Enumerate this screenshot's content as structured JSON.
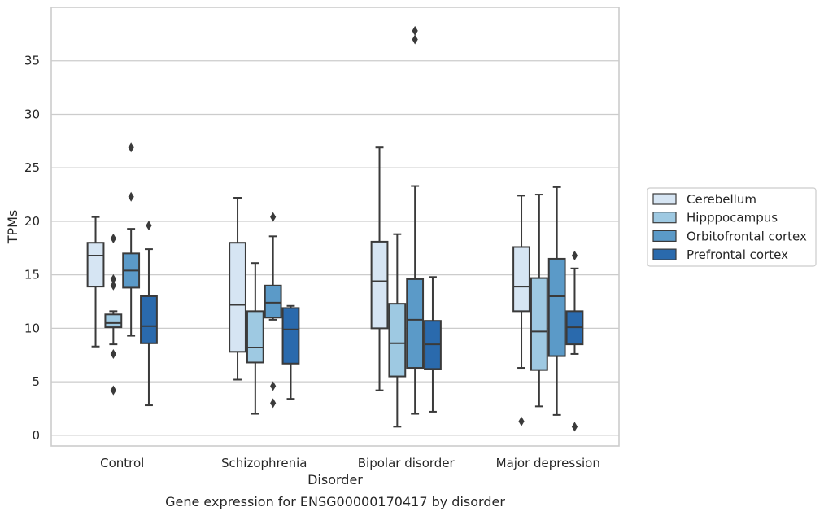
{
  "chart_data": {
    "type": "box",
    "title": "Gene expression for ENSG00000170417 by disorder",
    "xlabel": "Disorder",
    "ylabel": "TPMs",
    "ylim": [
      -1,
      40
    ],
    "yticks": [
      0,
      5,
      10,
      15,
      20,
      25,
      30,
      35
    ],
    "grid": "horizontal",
    "legend_position": "right",
    "categories": [
      "Control",
      "Schizophrenia",
      "Bipolar disorder",
      "Major depression"
    ],
    "series": [
      {
        "name": "Cerebellum",
        "color": "#d6e5f3",
        "boxes": [
          {
            "whislo": 8.3,
            "q1": 13.9,
            "med": 16.8,
            "q3": 18.0,
            "whishi": 20.4,
            "fliers": []
          },
          {
            "whislo": 5.2,
            "q1": 7.8,
            "med": 12.2,
            "q3": 18.0,
            "whishi": 22.2,
            "fliers": []
          },
          {
            "whislo": 4.2,
            "q1": 10.0,
            "med": 14.4,
            "q3": 18.1,
            "whishi": 26.9,
            "fliers": []
          },
          {
            "whislo": 6.3,
            "q1": 11.6,
            "med": 13.9,
            "q3": 17.6,
            "whishi": 22.4,
            "fliers": [
              1.3
            ]
          }
        ]
      },
      {
        "name": "Hipppocampus",
        "color": "#9ec9e2",
        "boxes": [
          {
            "whislo": 8.5,
            "q1": 10.1,
            "med": 10.5,
            "q3": 11.3,
            "whishi": 11.6,
            "fliers": [
              4.2,
              7.6,
              14.0,
              14.6,
              18.4
            ]
          },
          {
            "whislo": 2.0,
            "q1": 6.8,
            "med": 8.2,
            "q3": 11.6,
            "whishi": 16.1,
            "fliers": []
          },
          {
            "whislo": 0.8,
            "q1": 5.5,
            "med": 8.6,
            "q3": 12.3,
            "whishi": 18.8,
            "fliers": []
          },
          {
            "whislo": 2.7,
            "q1": 6.1,
            "med": 9.7,
            "q3": 14.7,
            "whishi": 22.5,
            "fliers": []
          }
        ]
      },
      {
        "name": "Orbitofrontal cortex",
        "color": "#5b9ac8",
        "boxes": [
          {
            "whislo": 9.3,
            "q1": 13.8,
            "med": 15.4,
            "q3": 17.0,
            "whishi": 19.3,
            "fliers": [
              22.3,
              26.9
            ]
          },
          {
            "whislo": 10.8,
            "q1": 11.0,
            "med": 12.4,
            "q3": 14.0,
            "whishi": 18.6,
            "fliers": [
              3.0,
              4.6,
              20.4
            ]
          },
          {
            "whislo": 2.0,
            "q1": 6.3,
            "med": 10.8,
            "q3": 14.6,
            "whishi": 23.3,
            "fliers": [
              37.0,
              37.8
            ]
          },
          {
            "whislo": 1.9,
            "q1": 7.4,
            "med": 13.0,
            "q3": 16.5,
            "whishi": 23.2,
            "fliers": []
          }
        ]
      },
      {
        "name": "Prefrontal cortex",
        "color": "#2a6aad",
        "boxes": [
          {
            "whislo": 2.8,
            "q1": 8.6,
            "med": 10.2,
            "q3": 13.0,
            "whishi": 17.4,
            "fliers": [
              19.6
            ]
          },
          {
            "whislo": 3.4,
            "q1": 6.7,
            "med": 9.9,
            "q3": 11.9,
            "whishi": 12.1,
            "fliers": []
          },
          {
            "whislo": 2.2,
            "q1": 6.2,
            "med": 8.5,
            "q3": 10.7,
            "whishi": 14.8,
            "fliers": []
          },
          {
            "whislo": 7.6,
            "q1": 8.5,
            "med": 10.1,
            "q3": 11.6,
            "whishi": 15.6,
            "fliers": [
              0.8,
              16.8
            ]
          }
        ]
      }
    ]
  }
}
